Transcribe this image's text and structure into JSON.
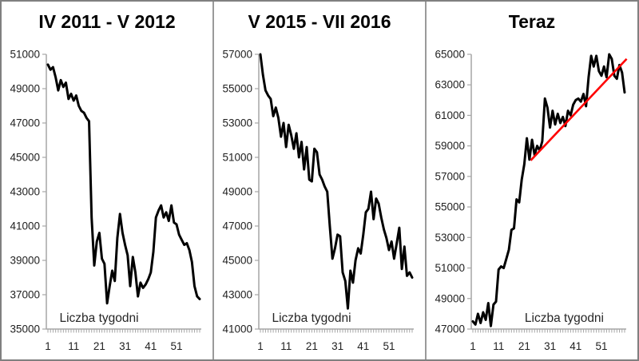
{
  "figure": {
    "background_color": "#ffffff",
    "border_color": "#808080",
    "divider_color": "#9a9a9a"
  },
  "style": {
    "axis_color": "#a6a6a6",
    "tick_label_color": "#1f1f1f",
    "series_color": "#000000",
    "trend_color": "#ff0000"
  },
  "chart_data": [
    {
      "type": "line",
      "title": "IV 2011 - V 2012",
      "xlabel": "Liczba tygodni",
      "xlabel_position": "center",
      "weeks": 60,
      "xticks": [
        1,
        11,
        21,
        31,
        41,
        51
      ],
      "ylim": [
        35000,
        51000
      ],
      "ytick_step": 2000,
      "yticks": [
        51000,
        49000,
        47000,
        45000,
        43000,
        41000,
        39000,
        37000,
        35000
      ],
      "line_color": "#000000",
      "grid": false,
      "legend": false,
      "values": [
        50400,
        50100,
        50250,
        49650,
        48900,
        49500,
        49100,
        49350,
        48400,
        48700,
        48300,
        48600,
        48000,
        47700,
        47600,
        47300,
        47100,
        41500,
        38700,
        40100,
        40600,
        39100,
        38800,
        36500,
        37500,
        38400,
        37800,
        40300,
        41700,
        40600,
        39900,
        39300,
        37500,
        39200,
        38300,
        36900,
        37700,
        37400,
        37600,
        37900,
        38300,
        39500,
        41500,
        41900,
        42200,
        41500,
        41800,
        41300,
        42200,
        41200,
        41100,
        40500,
        40200,
        39900,
        40000,
        39600,
        38900,
        37500,
        36900,
        36750
      ]
    },
    {
      "type": "line",
      "title": "V 2015 - VII 2016",
      "xlabel": "Liczba tygodni",
      "xlabel_position": "center",
      "weeks": 60,
      "xticks": [
        1,
        11,
        21,
        31,
        41,
        51
      ],
      "ylim": [
        41000,
        57000
      ],
      "ytick_step": 2000,
      "yticks": [
        57000,
        55000,
        53000,
        51000,
        49000,
        47000,
        45000,
        43000,
        41000
      ],
      "line_color": "#000000",
      "grid": false,
      "legend": false,
      "values": [
        57000,
        55800,
        54900,
        54600,
        54400,
        53400,
        53900,
        53300,
        52200,
        53000,
        51600,
        52900,
        52300,
        51500,
        52400,
        51000,
        51900,
        50300,
        51600,
        49700,
        49600,
        51500,
        51300,
        50000,
        49700,
        49300,
        49000,
        47000,
        45100,
        45700,
        46500,
        46400,
        44300,
        43800,
        42200,
        44400,
        43700,
        45000,
        45700,
        45400,
        46500,
        47800,
        48000,
        49000,
        47400,
        48600,
        48300,
        47500,
        46800,
        46300,
        45600,
        46100,
        45100,
        46000,
        46900,
        44500,
        45800,
        44100,
        44300,
        44000
      ]
    },
    {
      "type": "line",
      "title": "Teraz",
      "xlabel": "Liczba tygodni",
      "xlabel_position": "right",
      "weeks": 60,
      "xticks": [
        1,
        11,
        21,
        31,
        41,
        51
      ],
      "ylim": [
        47000,
        65000
      ],
      "ytick_step": 2000,
      "yticks": [
        65000,
        63000,
        61000,
        59000,
        57000,
        55000,
        53000,
        51000,
        49000,
        47000
      ],
      "line_color": "#000000",
      "grid": false,
      "legend": false,
      "trendline": {
        "color": "#ff0000",
        "x1": 23.5,
        "y1": 58050,
        "x2": 60.8,
        "y2": 64700
      },
      "values": [
        47500,
        47300,
        48000,
        47400,
        48100,
        47600,
        48700,
        47200,
        48600,
        48800,
        50900,
        51100,
        51000,
        51600,
        52200,
        53500,
        53600,
        55500,
        55300,
        56800,
        57800,
        59500,
        58100,
        59400,
        58400,
        59000,
        58700,
        59300,
        62100,
        61500,
        60200,
        61300,
        60400,
        61100,
        60500,
        60900,
        60300,
        61300,
        61000,
        61700,
        62000,
        62100,
        61900,
        62400,
        61600,
        63500,
        64900,
        64200,
        64900,
        63900,
        63600,
        64200,
        63500,
        65000,
        64700,
        63600,
        63400,
        64300,
        63800,
        62500
      ]
    }
  ]
}
